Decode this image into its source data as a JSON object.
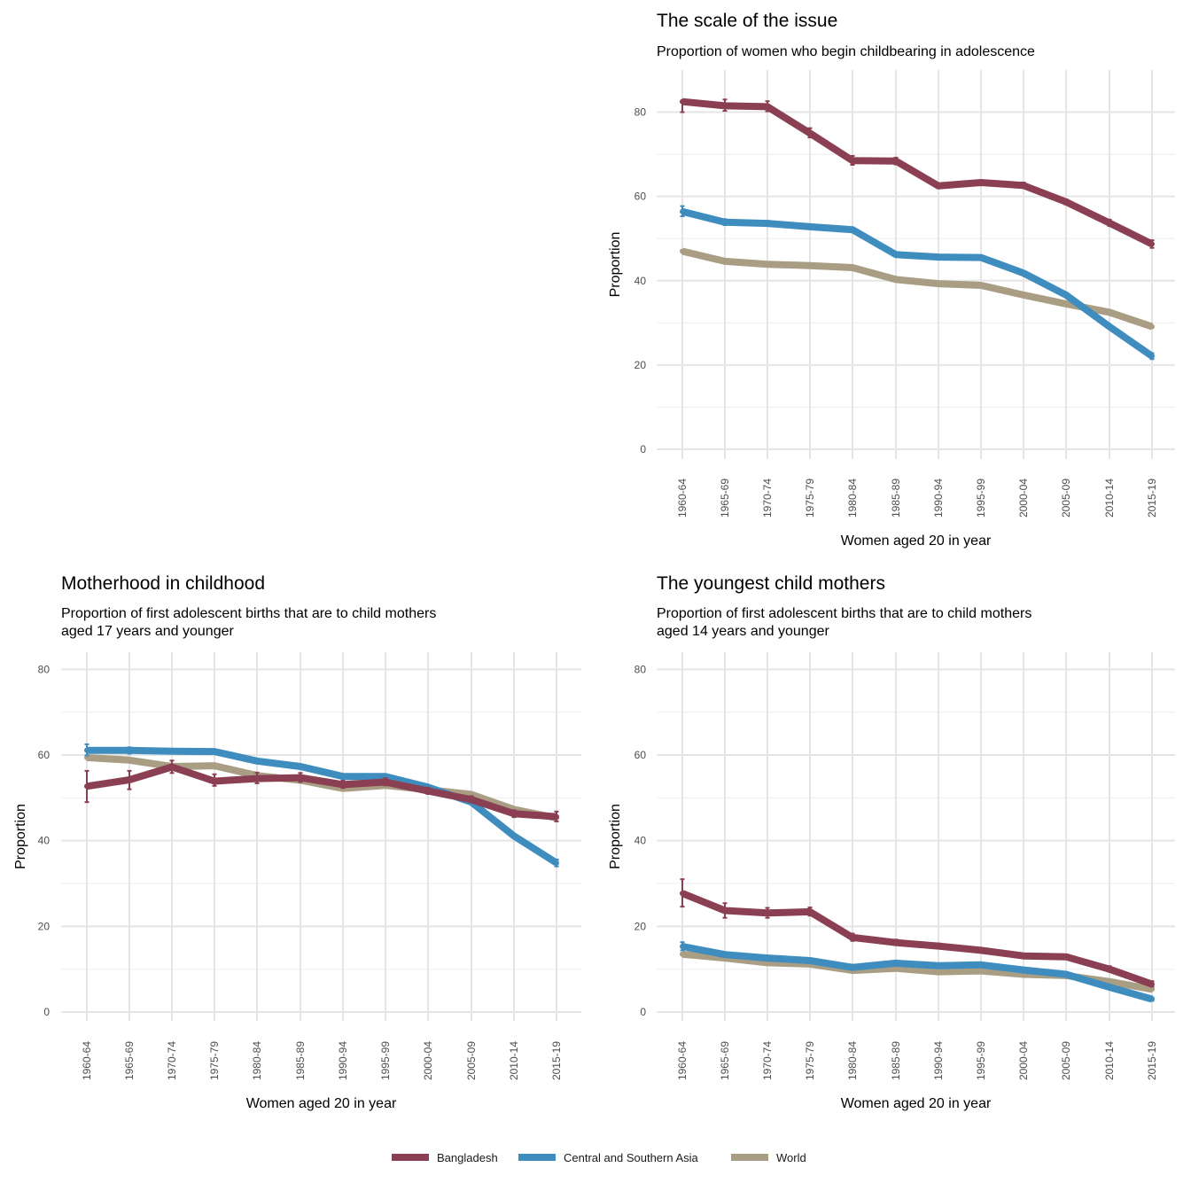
{
  "chart_data": [
    {
      "type": "line",
      "title": "The scale of the issue",
      "subtitle": [
        "Proportion of women who begin childbearing in adolescence"
      ],
      "xlabel": "Women aged 20 in year",
      "ylabel": "Proportion",
      "categories": [
        "1960-64",
        "1965-69",
        "1970-74",
        "1975-79",
        "1980-84",
        "1985-89",
        "1990-94",
        "1995-99",
        "2000-04",
        "2005-09",
        "2010-14",
        "2015-19"
      ],
      "ylim": [
        0,
        90
      ],
      "yticks": [
        0,
        20,
        40,
        60,
        80
      ],
      "grid": true,
      "series": [
        {
          "name": "Bangladesh",
          "values": [
            82.5,
            81.5,
            81.3,
            75.0,
            68.5,
            68.4,
            62.5,
            63.3,
            62.6,
            58.7,
            53.7,
            48.7
          ],
          "lower": [
            80.0,
            80.3,
            80.2,
            74.0,
            67.5,
            67.6,
            62.0,
            62.8,
            62.0,
            58.1,
            53.0,
            47.8
          ],
          "upper": [
            82.5,
            83.0,
            82.6,
            76.2,
            69.6,
            69.2,
            63.0,
            63.8,
            63.3,
            59.3,
            54.5,
            49.6
          ]
        },
        {
          "name": "Central and Southern Asia",
          "values": [
            56.4,
            53.9,
            53.6,
            52.8,
            52.1,
            46.2,
            45.6,
            45.5,
            41.8,
            36.6,
            29.1,
            22.1
          ],
          "lower": [
            55.3,
            53.2,
            53.0,
            52.3,
            51.6,
            45.8,
            45.2,
            45.1,
            41.4,
            36.2,
            28.7,
            21.4
          ],
          "upper": [
            57.7,
            54.6,
            54.2,
            53.3,
            52.6,
            46.6,
            46.0,
            45.9,
            42.2,
            37.0,
            29.5,
            22.8
          ]
        },
        {
          "name": "World",
          "values": [
            47.0,
            44.6,
            43.9,
            43.6,
            43.1,
            40.3,
            39.3,
            38.9,
            36.6,
            34.5,
            32.5,
            29.1
          ]
        }
      ]
    },
    {
      "type": "line",
      "title": "Motherhood in childhood",
      "subtitle": [
        "Proportion of first adolescent births that are to child mothers",
        "aged 17 years and younger"
      ],
      "xlabel": "Women aged 20 in year",
      "ylabel": "Proportion",
      "categories": [
        "1960-64",
        "1965-69",
        "1970-74",
        "1975-79",
        "1980-84",
        "1985-89",
        "1990-94",
        "1995-99",
        "2000-04",
        "2005-09",
        "2010-14",
        "2015-19"
      ],
      "ylim": [
        0,
        84
      ],
      "yticks": [
        0,
        20,
        40,
        60,
        80
      ],
      "grid": true,
      "series": [
        {
          "name": "Bangladesh",
          "values": [
            52.7,
            54.2,
            57.2,
            53.9,
            54.5,
            54.7,
            53.1,
            53.7,
            51.6,
            49.6,
            46.3,
            45.6
          ],
          "lower": [
            49.0,
            52.0,
            55.8,
            52.8,
            53.4,
            53.7,
            52.3,
            52.9,
            50.9,
            48.9,
            45.5,
            44.5
          ],
          "upper": [
            56.3,
            56.3,
            58.7,
            55.5,
            55.9,
            55.8,
            54.0,
            54.6,
            52.4,
            50.4,
            47.1,
            46.8
          ]
        },
        {
          "name": "Central and Southern Asia",
          "values": [
            61.1,
            61.1,
            60.9,
            60.8,
            58.6,
            57.3,
            55.0,
            55.0,
            52.5,
            49.0,
            41.1,
            34.8
          ],
          "lower": [
            59.9,
            60.3,
            60.4,
            60.4,
            58.2,
            56.9,
            54.6,
            54.6,
            52.1,
            48.6,
            40.7,
            34.0
          ],
          "upper": [
            62.5,
            61.8,
            61.4,
            61.3,
            59.0,
            57.7,
            55.4,
            55.4,
            52.9,
            49.4,
            41.5,
            35.6
          ]
        },
        {
          "name": "World",
          "values": [
            59.4,
            58.8,
            57.3,
            57.5,
            55.2,
            54.1,
            52.2,
            52.9,
            51.9,
            50.8,
            47.3,
            45.3
          ]
        }
      ]
    },
    {
      "type": "line",
      "title": "The youngest child mothers",
      "subtitle": [
        "Proportion of first adolescent births that are to child mothers",
        "aged 14 years and younger"
      ],
      "xlabel": "Women aged 20 in year",
      "ylabel": "Proportion",
      "categories": [
        "1960-64",
        "1965-69",
        "1970-74",
        "1975-79",
        "1980-84",
        "1985-89",
        "1990-94",
        "1995-99",
        "2000-04",
        "2005-09",
        "2010-14",
        "2015-19"
      ],
      "ylim": [
        0,
        84
      ],
      "yticks": [
        0,
        20,
        40,
        60,
        80
      ],
      "grid": true,
      "series": [
        {
          "name": "Bangladesh",
          "values": [
            27.7,
            23.7,
            23.1,
            23.4,
            17.4,
            16.2,
            15.4,
            14.4,
            13.1,
            12.9,
            10.0,
            6.5
          ],
          "lower": [
            24.6,
            22.0,
            22.0,
            22.5,
            16.6,
            15.6,
            14.8,
            13.9,
            12.6,
            12.4,
            9.4,
            5.9
          ],
          "upper": [
            31.0,
            25.4,
            24.3,
            24.4,
            18.3,
            16.9,
            16.0,
            14.9,
            13.6,
            13.4,
            10.7,
            7.2
          ]
        },
        {
          "name": "Central and Southern Asia",
          "values": [
            15.3,
            13.4,
            12.6,
            12.0,
            10.4,
            11.4,
            10.8,
            11.0,
            9.8,
            8.8,
            5.8,
            3.0
          ],
          "lower": [
            14.4,
            13.0,
            12.3,
            11.7,
            10.1,
            11.1,
            10.5,
            10.7,
            9.5,
            8.5,
            5.5,
            2.6
          ],
          "upper": [
            16.3,
            13.8,
            12.9,
            12.3,
            10.7,
            11.7,
            11.1,
            11.3,
            10.1,
            9.1,
            6.1,
            3.4
          ]
        },
        {
          "name": "World",
          "values": [
            13.5,
            12.6,
            11.5,
            11.2,
            9.7,
            10.2,
            9.4,
            9.6,
            8.8,
            8.5,
            7.1,
            5.3
          ]
        }
      ]
    }
  ],
  "legend": {
    "position": "bottom",
    "items": [
      {
        "label": "Bangladesh",
        "color": "#8b3f52"
      },
      {
        "label": "Central and Southern Asia",
        "color": "#3f8dbf"
      },
      {
        "label": "World",
        "color": "#a99e84"
      }
    ]
  }
}
